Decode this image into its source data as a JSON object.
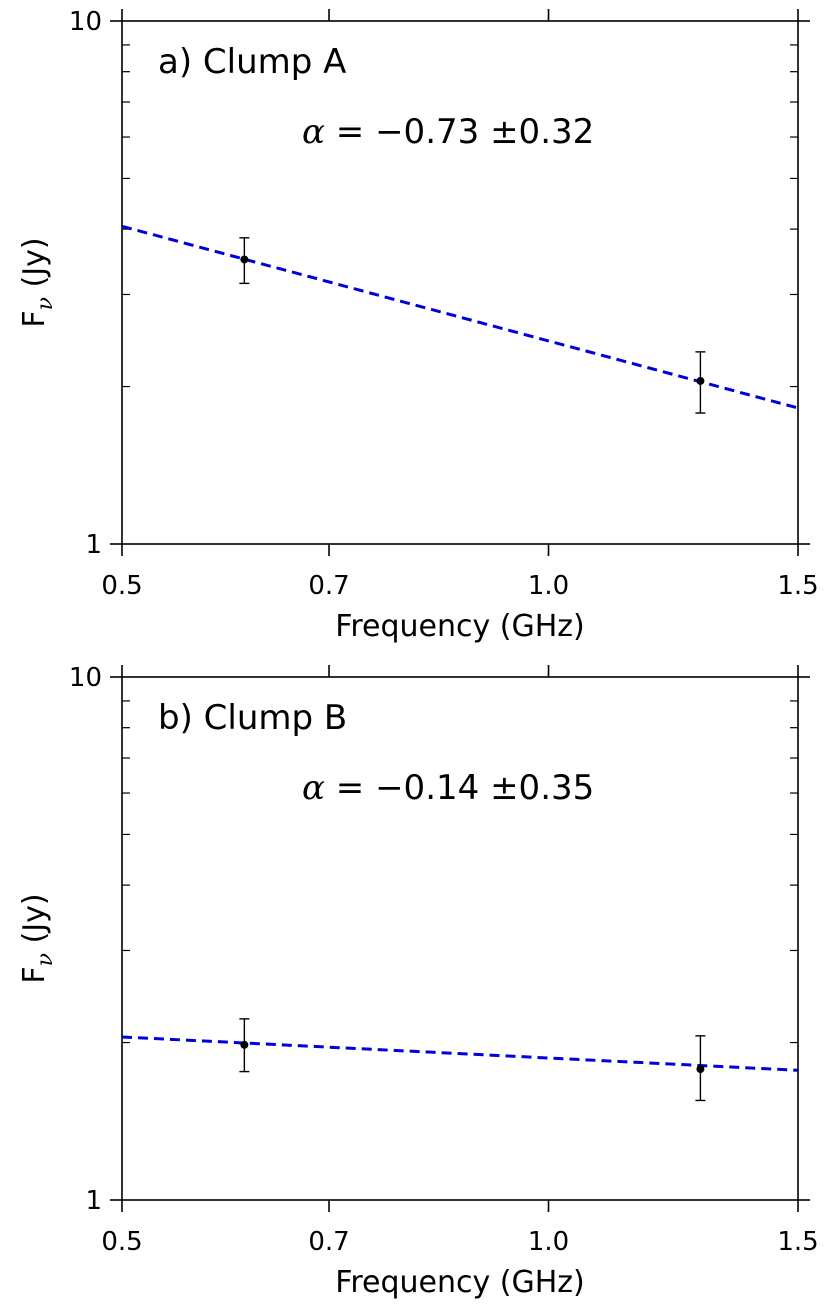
{
  "chart_data": [
    {
      "type": "scatter",
      "title": "a) Clump A",
      "annotation": {
        "symbol": "α",
        "text": " = −0.73 ±0.32"
      },
      "xlabel": "Frequency (GHz)",
      "ylabel": {
        "main": "F",
        "subscript": "ν",
        "unit": " (Jy)"
      },
      "x_scale": "log",
      "y_scale": "log",
      "xlim": [
        0.5,
        1.5
      ],
      "ylim": [
        1,
        10
      ],
      "x_ticks": [
        {
          "value": 0.5,
          "label": "0.5"
        },
        {
          "value": 0.7,
          "label": "0.7"
        },
        {
          "value": 1.0,
          "label": "1.0"
        },
        {
          "value": 1.5,
          "label": "1.5"
        }
      ],
      "y_ticks": [
        {
          "value": 1,
          "label": "1"
        },
        {
          "value": 10,
          "label": "10"
        }
      ],
      "points": [
        {
          "x": 0.61,
          "y": 3.5,
          "yerr_low": 0.35,
          "yerr_high": 0.35
        },
        {
          "x": 1.28,
          "y": 2.05,
          "yerr_low": 0.27,
          "yerr_high": 0.28
        }
      ],
      "fit": {
        "slope": -0.73,
        "x": [
          0.5,
          1.5
        ],
        "y": [
          4.05,
          1.82
        ],
        "color": "#0000dd",
        "style": "dashed"
      },
      "grid": false
    },
    {
      "type": "scatter",
      "title": "b) Clump B",
      "annotation": {
        "symbol": "α",
        "text": " = −0.14 ±0.35"
      },
      "xlabel": "Frequency (GHz)",
      "ylabel": {
        "main": "F",
        "subscript": "ν",
        "unit": " (Jy)"
      },
      "x_scale": "log",
      "y_scale": "log",
      "xlim": [
        0.5,
        1.5
      ],
      "ylim": [
        1,
        10
      ],
      "x_ticks": [
        {
          "value": 0.5,
          "label": "0.5"
        },
        {
          "value": 0.7,
          "label": "0.7"
        },
        {
          "value": 1.0,
          "label": "1.0"
        },
        {
          "value": 1.5,
          "label": "1.5"
        }
      ],
      "y_ticks": [
        {
          "value": 1,
          "label": "1"
        },
        {
          "value": 10,
          "label": "10"
        }
      ],
      "points": [
        {
          "x": 0.61,
          "y": 1.98,
          "yerr_low": 0.22,
          "yerr_high": 0.24
        },
        {
          "x": 1.28,
          "y": 1.78,
          "yerr_low": 0.23,
          "yerr_high": 0.28
        }
      ],
      "fit": {
        "slope": -0.14,
        "x": [
          0.5,
          1.5
        ],
        "y": [
          2.05,
          1.77
        ],
        "color": "#0000dd",
        "style": "dashed"
      },
      "grid": false
    }
  ]
}
